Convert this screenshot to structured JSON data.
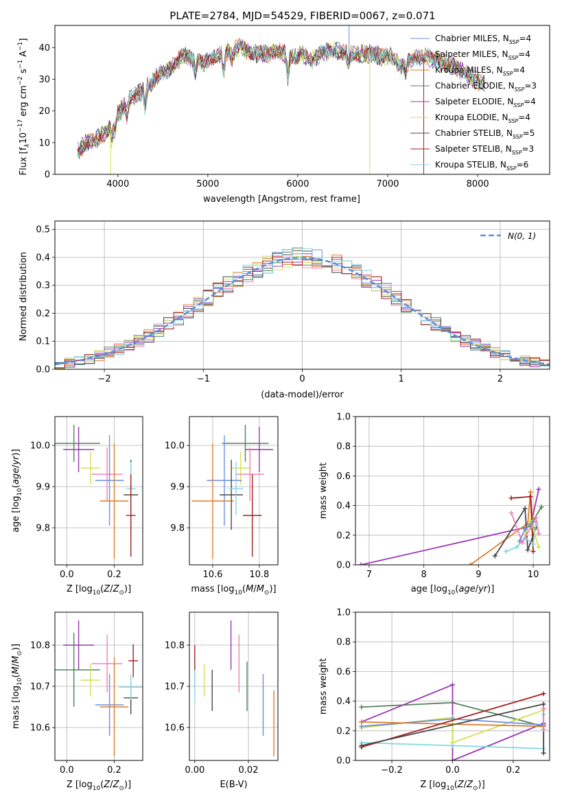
{
  "figure": {
    "title": "PLATE=2784, MJD=54529, FIBERID=0067, z=0.071"
  },
  "colors": {
    "chabrier_miles": "#6a8fdc",
    "salpeter_miles": "#f080b8",
    "kroupa_miles": "#e07a28",
    "chabrier_elodie": "#4f8258",
    "salpeter_elodie": "#9a34b4",
    "kroupa_elodie": "#d2e050",
    "chabrier_stelib": "#474747",
    "salpeter_stelib": "#a41e1e",
    "kroupa_stelib": "#80d8e0",
    "gaussian": "#5a8fdc"
  },
  "chart_data": [
    {
      "id": "spectrum",
      "type": "line",
      "xlabel": "wavelength [Angstrom, rest frame]",
      "ylabel": "Flux [f",
      "xlim": [
        3300,
        8800
      ],
      "ylim": [
        0,
        47
      ],
      "xticks": [
        "4000",
        "5000",
        "6000",
        "7000",
        "8000"
      ],
      "yticks": [
        "0",
        "10",
        "20",
        "30",
        "40"
      ],
      "legend_position": "upper right",
      "grid": false,
      "legend": [
        {
          "label": "Chabrier MILES, N",
          "sub": "SSP",
          "eq": "=4",
          "color_key": "chabrier_miles"
        },
        {
          "label": "Salpeter MILES, N",
          "sub": "SSP",
          "eq": "=4",
          "color_key": "salpeter_miles"
        },
        {
          "label": "Kroupa MILES, N",
          "sub": "SSP",
          "eq": "=4",
          "color_key": "kroupa_miles"
        },
        {
          "label": "Chabrier ELODIE, N",
          "sub": "SSP",
          "eq": "=3",
          "color_key": "chabrier_elodie"
        },
        {
          "label": "Salpeter ELODIE, N",
          "sub": "SSP",
          "eq": "=4",
          "color_key": "salpeter_elodie"
        },
        {
          "label": "Kroupa ELODIE, N",
          "sub": "SSP",
          "eq": "=4",
          "color_key": "kroupa_elodie"
        },
        {
          "label": "Chabrier STELIB, N",
          "sub": "SSP",
          "eq": "=5",
          "color_key": "chabrier_stelib"
        },
        {
          "label": "Salpeter STELIB, N",
          "sub": "SSP",
          "eq": "=3",
          "color_key": "salpeter_stelib"
        },
        {
          "label": "Kroupa STELIB, N",
          "sub": "SSP",
          "eq": "=6",
          "color_key": "kroupa_stelib"
        }
      ],
      "envelope": {
        "x": [
          3550,
          3650,
          3750,
          3850,
          3950,
          4050,
          4150,
          4300,
          4450,
          4600,
          4750,
          4850,
          4950,
          5050,
          5150,
          5250,
          5350,
          5450,
          5550,
          5650,
          5750,
          5850,
          5950,
          6050,
          6150,
          6250,
          6350,
          6450,
          6550,
          6650,
          6750,
          6850,
          6950,
          7050,
          7150,
          7250,
          7350,
          7450,
          7550,
          7650,
          7750,
          7850,
          7950,
          8050
        ],
        "y": [
          7,
          10,
          11,
          13,
          17,
          21,
          24,
          27,
          31,
          34,
          38,
          36,
          35,
          37,
          38,
          39,
          40,
          39,
          38,
          38,
          39,
          38,
          37,
          38,
          36,
          38,
          39,
          39,
          38,
          38,
          38,
          38,
          37,
          37,
          34,
          36,
          37,
          37,
          36,
          35,
          34,
          32,
          30,
          29
        ]
      },
      "spikes": [
        {
          "x": 3920,
          "y": 0,
          "color_key": "kroupa_elodie"
        },
        {
          "x": 6570,
          "y": 47,
          "color_key": "chabrier_miles"
        },
        {
          "x": 6800,
          "y": 0,
          "color_key": "kroupa_elodie"
        },
        {
          "x": 7400,
          "y": 0,
          "color_key": "salpeter_stelib"
        }
      ]
    },
    {
      "id": "residuals",
      "type": "line",
      "xlabel": "(data-model)/error",
      "ylabel": "Normed distribution",
      "xlim": [
        -2.5,
        2.5
      ],
      "ylim": [
        0,
        0.53
      ],
      "xticks": [
        "−2",
        "−1",
        "0",
        "1",
        "2"
      ],
      "yticks": [
        "0.0",
        "0.1",
        "0.2",
        "0.3",
        "0.4",
        "0.5"
      ],
      "grid": true,
      "legend_label": "N(0, 1)",
      "legend_position": "upper right",
      "hist_bins": [
        -2.5,
        -2.4,
        -2.3,
        -2.2,
        -2.1,
        -2.0,
        -1.9,
        -1.8,
        -1.7,
        -1.6,
        -1.5,
        -1.4,
        -1.3,
        -1.2,
        -1.1,
        -1.0,
        -0.9,
        -0.8,
        -0.7,
        -0.6,
        -0.5,
        -0.4,
        -0.3,
        -0.2,
        -0.1,
        0.0,
        0.1,
        0.2,
        0.3,
        0.4,
        0.5,
        0.6,
        0.7,
        0.8,
        0.9,
        1.0,
        1.1,
        1.2,
        1.3,
        1.4,
        1.5,
        1.6,
        1.7,
        1.8,
        1.9,
        2.0,
        2.1,
        2.2,
        2.3,
        2.4
      ]
    },
    {
      "id": "age_vs_Z",
      "type": "scatter",
      "xlabel": "Z [log",
      "ylabel": "age  [log",
      "xlim": [
        -0.05,
        0.32
      ],
      "ylim": [
        9.71,
        10.07
      ],
      "xticks": [
        "0.0",
        "0.2"
      ],
      "yticks": [
        "9.8",
        "9.9",
        "10.0"
      ],
      "grid": true,
      "points": [
        {
          "x": 0.05,
          "y": 9.99,
          "xerr": 0.065,
          "yerr": 0.055,
          "color_key": "salpeter_elodie"
        },
        {
          "x": 0.03,
          "y": 10.005,
          "xerr": 0.11,
          "yerr": 0.045,
          "color_key": "chabrier_elodie"
        },
        {
          "x": 0.1,
          "y": 9.945,
          "xerr": 0.04,
          "yerr": 0.04,
          "color_key": "kroupa_elodie"
        },
        {
          "x": 0.17,
          "y": 9.93,
          "xerr": 0.065,
          "yerr": 0.065,
          "color_key": "salpeter_miles"
        },
        {
          "x": 0.18,
          "y": 9.915,
          "xerr": 0.06,
          "yerr": 0.11,
          "color_key": "chabrier_miles"
        },
        {
          "x": 0.2,
          "y": 9.865,
          "xerr": 0.06,
          "yerr": 0.14,
          "color_key": "kroupa_miles"
        },
        {
          "x": 0.27,
          "y": 9.88,
          "xerr": 0.03,
          "yerr": 0.085,
          "color_key": "chabrier_stelib"
        },
        {
          "x": 0.27,
          "y": 9.895,
          "xerr": 0.02,
          "yerr": 0.065,
          "color_key": "kroupa_stelib"
        },
        {
          "x": 0.27,
          "y": 9.83,
          "xerr": 0.02,
          "yerr": 0.1,
          "color_key": "salpeter_stelib"
        }
      ]
    },
    {
      "id": "age_vs_mass",
      "type": "scatter",
      "xlabel": "mass [log",
      "ylabel": "",
      "xlim": [
        10.5,
        10.88
      ],
      "ylim": [
        9.71,
        10.07
      ],
      "xticks": [
        "10.6",
        "10.8"
      ],
      "yticks": [
        "9.8",
        "9.9",
        "10.0"
      ],
      "grid": true,
      "points": [
        {
          "x": 10.8,
          "y": 9.99,
          "xerr": 0.06,
          "yerr": 0.055,
          "color_key": "salpeter_elodie"
        },
        {
          "x": 10.74,
          "y": 10.005,
          "xerr": 0.1,
          "yerr": 0.045,
          "color_key": "chabrier_elodie"
        },
        {
          "x": 10.72,
          "y": 9.945,
          "xerr": 0.04,
          "yerr": 0.04,
          "color_key": "kroupa_elodie"
        },
        {
          "x": 10.76,
          "y": 9.93,
          "xerr": 0.06,
          "yerr": 0.065,
          "color_key": "salpeter_miles"
        },
        {
          "x": 10.65,
          "y": 9.915,
          "xerr": 0.075,
          "yerr": 0.11,
          "color_key": "chabrier_miles"
        },
        {
          "x": 10.6,
          "y": 9.865,
          "xerr": 0.09,
          "yerr": 0.14,
          "color_key": "kroupa_miles"
        },
        {
          "x": 10.68,
          "y": 9.88,
          "xerr": 0.05,
          "yerr": 0.085,
          "color_key": "chabrier_stelib"
        },
        {
          "x": 10.7,
          "y": 9.895,
          "xerr": 0.03,
          "yerr": 0.065,
          "color_key": "kroupa_stelib"
        },
        {
          "x": 10.77,
          "y": 9.83,
          "xerr": 0.04,
          "yerr": 0.1,
          "color_key": "salpeter_stelib"
        }
      ]
    },
    {
      "id": "weight_vs_age",
      "type": "line",
      "xlabel": "age  [log",
      "ylabel": "mass weight",
      "xlim": [
        6.75,
        10.3
      ],
      "ylim": [
        0,
        1
      ],
      "xticks": [
        "7",
        "8",
        "9",
        "10"
      ],
      "yticks": [
        "0.0",
        "0.2",
        "0.4",
        "0.6",
        "0.8",
        "1.0"
      ],
      "grid": true,
      "series": [
        {
          "color_key": "salpeter_elodie",
          "x": [
            6.85,
            9.95,
            10.1
          ],
          "y": [
            0.0,
            0.26,
            0.51
          ]
        },
        {
          "color_key": "kroupa_miles",
          "x": [
            8.85,
            9.9,
            9.95,
            10.0
          ],
          "y": [
            0.0,
            0.28,
            0.49,
            0.24
          ]
        },
        {
          "color_key": "salpeter_stelib",
          "x": [
            9.6,
            9.95,
            10.0
          ],
          "y": [
            0.45,
            0.46,
            0.09
          ]
        },
        {
          "color_key": "chabrier_elodie",
          "x": [
            9.95,
            10.15
          ],
          "y": [
            0.27,
            0.39
          ]
        },
        {
          "color_key": "chabrier_stelib",
          "x": [
            9.3,
            9.85,
            9.9,
            10.05
          ],
          "y": [
            0.06,
            0.38,
            0.1,
            0.25
          ]
        },
        {
          "color_key": "kroupa_stelib",
          "x": [
            9.5,
            9.7,
            9.85,
            10.0,
            10.05
          ],
          "y": [
            0.09,
            0.12,
            0.18,
            0.14,
            0.29
          ]
        },
        {
          "color_key": "kroupa_elodie",
          "x": [
            9.85,
            9.95,
            10.1
          ],
          "y": [
            0.2,
            0.3,
            0.12
          ]
        },
        {
          "color_key": "salpeter_miles",
          "x": [
            9.6,
            9.8,
            10.05,
            10.1
          ],
          "y": [
            0.35,
            0.15,
            0.32,
            0.21
          ]
        },
        {
          "color_key": "chabrier_miles",
          "x": [
            9.75,
            9.85,
            10.0
          ],
          "y": [
            0.16,
            0.24,
            0.29
          ]
        }
      ]
    },
    {
      "id": "mass_vs_Z",
      "type": "scatter",
      "xlabel": "Z [log",
      "ylabel": "mass [log",
      "xlim": [
        -0.05,
        0.32
      ],
      "ylim": [
        10.52,
        10.88
      ],
      "xticks": [
        "0.0",
        "0.2"
      ],
      "yticks": [
        "10.6",
        "10.7",
        "10.8"
      ],
      "grid": true,
      "points": [
        {
          "x": 0.05,
          "y": 10.8,
          "xerr": 0.065,
          "yerr": 0.06,
          "color_key": "salpeter_elodie"
        },
        {
          "x": 0.03,
          "y": 10.74,
          "xerr": 0.11,
          "yerr": 0.09,
          "color_key": "chabrier_elodie"
        },
        {
          "x": 0.1,
          "y": 10.715,
          "xerr": 0.04,
          "yerr": 0.04,
          "color_key": "kroupa_elodie"
        },
        {
          "x": 0.17,
          "y": 10.755,
          "xerr": 0.065,
          "yerr": 0.07,
          "color_key": "salpeter_miles"
        },
        {
          "x": 0.18,
          "y": 10.655,
          "xerr": 0.06,
          "yerr": 0.075,
          "color_key": "chabrier_miles"
        },
        {
          "x": 0.2,
          "y": 10.65,
          "xerr": 0.06,
          "yerr": 0.12,
          "color_key": "kroupa_miles"
        },
        {
          "x": 0.27,
          "y": 10.672,
          "xerr": 0.03,
          "yerr": 0.04,
          "color_key": "chabrier_stelib"
        },
        {
          "x": 0.27,
          "y": 10.698,
          "xerr": 0.05,
          "yerr": 0.03,
          "color_key": "kroupa_stelib"
        },
        {
          "x": 0.28,
          "y": 10.762,
          "xerr": 0.02,
          "yerr": 0.04,
          "color_key": "salpeter_stelib"
        }
      ]
    },
    {
      "id": "mass_vs_ebv",
      "type": "scatter",
      "xlabel": "E(B-V)",
      "ylabel": "",
      "xlim": [
        -0.002,
        0.031
      ],
      "ylim": [
        10.52,
        10.88
      ],
      "xticks": [
        "0.00",
        "0.02"
      ],
      "yticks": [
        "10.6",
        "10.7",
        "10.8"
      ],
      "grid": true,
      "points": [
        {
          "x": 0.0,
          "y": 10.75,
          "xerr": 0,
          "yerr": 0.05,
          "color_key": "salpeter_stelib"
        },
        {
          "x": 0.0,
          "y": 10.7,
          "xerr": 0,
          "yerr": 0.04,
          "color_key": "kroupa_stelib"
        },
        {
          "x": 0.0035,
          "y": 10.715,
          "xerr": 0,
          "yerr": 0.04,
          "color_key": "kroupa_elodie"
        },
        {
          "x": 0.0065,
          "y": 10.69,
          "xerr": 0,
          "yerr": 0.05,
          "color_key": "chabrier_stelib"
        },
        {
          "x": 0.0135,
          "y": 10.8,
          "xerr": 0,
          "yerr": 0.06,
          "color_key": "salpeter_elodie"
        },
        {
          "x": 0.0165,
          "y": 10.755,
          "xerr": 0,
          "yerr": 0.07,
          "color_key": "salpeter_miles"
        },
        {
          "x": 0.0195,
          "y": 10.7,
          "xerr": 0,
          "yerr": 0.06,
          "color_key": "chabrier_elodie"
        },
        {
          "x": 0.0255,
          "y": 10.655,
          "xerr": 0,
          "yerr": 0.075,
          "color_key": "chabrier_miles"
        },
        {
          "x": 0.0295,
          "y": 10.61,
          "xerr": 0,
          "yerr": 0.08,
          "color_key": "kroupa_miles"
        }
      ]
    },
    {
      "id": "weight_vs_Z",
      "type": "line",
      "xlabel": "Z [log",
      "ylabel": "mass weight",
      "xlim": [
        -0.32,
        0.32
      ],
      "ylim": [
        0,
        1
      ],
      "xticks": [
        "−0.2",
        "0.0",
        "0.2"
      ],
      "yticks": [
        "0.0",
        "0.2",
        "0.4",
        "0.6",
        "0.8",
        "1.0"
      ],
      "grid": true,
      "series": [
        {
          "color_key": "chabrier_elodie",
          "x": [
            -0.3,
            0.0,
            0.3
          ],
          "y": [
            0.36,
            0.39,
            0.23
          ]
        },
        {
          "color_key": "salpeter_elodie",
          "x": [
            -0.3,
            0.0,
            0.0,
            0.3
          ],
          "y": [
            0.26,
            0.51,
            0.0,
            0.25
          ]
        },
        {
          "color_key": "kroupa_elodie",
          "x": [
            -0.3,
            0.0,
            0.0,
            0.3
          ],
          "y": [
            0.22,
            0.29,
            0.12,
            0.34
          ]
        },
        {
          "color_key": "chabrier_miles",
          "x": [
            -0.3,
            0.0,
            0.3
          ],
          "y": [
            0.23,
            0.28,
            0.24
          ]
        },
        {
          "color_key": "kroupa_miles",
          "x": [
            -0.3,
            0.3
          ],
          "y": [
            0.26,
            0.23
          ]
        },
        {
          "color_key": "kroupa_stelib",
          "x": [
            -0.3,
            0.0,
            0.3,
            0.3
          ],
          "y": [
            0.12,
            0.1,
            0.08,
            0.31
          ]
        },
        {
          "color_key": "salpeter_stelib",
          "x": [
            -0.3,
            0.3
          ],
          "y": [
            0.09,
            0.45
          ]
        },
        {
          "color_key": "chabrier_stelib",
          "x": [
            -0.3,
            0.3,
            0.3
          ],
          "y": [
            0.1,
            0.38,
            0.05
          ]
        },
        {
          "color_key": "salpeter_miles",
          "x": [
            0.3,
            0.3
          ],
          "y": [
            0.21,
            0.35
          ]
        }
      ]
    }
  ]
}
